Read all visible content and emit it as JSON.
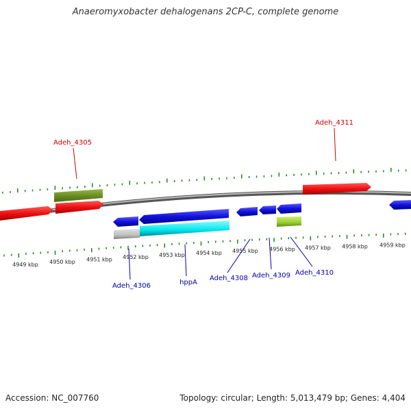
{
  "title": "Anaeromyxobacter dehalogenans 2CP-C, complete genome",
  "footer": {
    "accession": "Accession: NC_007760",
    "summary": "Topology: circular; Length: 5,013,479 bp; Genes: 4,404"
  },
  "colors": {
    "background": "#ffffff",
    "backbone": "#888888",
    "tick": "#2a8a2a",
    "label_forward": "#cc0000",
    "label_reverse": "#0000aa"
  },
  "scale": {
    "labels": [
      "4949 kbp",
      "4950 kbp",
      "4951 kbp",
      "4952 kbp",
      "4953 kbp",
      "4954 kbp",
      "4955 kbp",
      "4956 kbp",
      "4957 kbp",
      "4958 kbp",
      "4959 kbp"
    ]
  },
  "features": [
    {
      "name": "forward-gene-1",
      "strand": "forward",
      "color": "#ee1111"
    },
    {
      "name": "forward-gene-2",
      "strand": "forward",
      "color": "#ee1111"
    },
    {
      "name": "forward-gene-adeh-4305",
      "strand": "forward",
      "color": "#6b8e23"
    },
    {
      "name": "forward-gene-adeh-4311",
      "strand": "forward",
      "color": "#ee1111"
    },
    {
      "name": "reverse-gene-adeh-4306",
      "strand": "reverse",
      "color": "#1111dd"
    },
    {
      "name": "reverse-gene-hppA",
      "strand": "reverse",
      "color": "#1111dd"
    },
    {
      "name": "reverse-gene-adeh-4308",
      "strand": "reverse",
      "color": "#1111dd"
    },
    {
      "name": "reverse-gene-adeh-4309",
      "strand": "reverse",
      "color": "#1111dd"
    },
    {
      "name": "reverse-gene-adeh-4310",
      "strand": "reverse",
      "color": "#1111dd"
    },
    {
      "name": "reverse-gene-right-edge",
      "strand": "reverse",
      "color": "#1111dd"
    },
    {
      "name": "rna-adeh-4306",
      "strand": "reverse",
      "color": "#c0c0c0"
    },
    {
      "name": "rna-hppA",
      "strand": "reverse",
      "color": "#00e5ee"
    },
    {
      "name": "rna-adeh-4310",
      "strand": "reverse",
      "color": "#9acd32"
    }
  ],
  "labels": {
    "adeh_4305": "Adeh_4305",
    "adeh_4311": "Adeh_4311",
    "adeh_4306": "Adeh_4306",
    "hppA": "hppA",
    "adeh_4308": "Adeh_4308",
    "adeh_4309": "Adeh_4309",
    "adeh_4310": "Adeh_4310"
  }
}
